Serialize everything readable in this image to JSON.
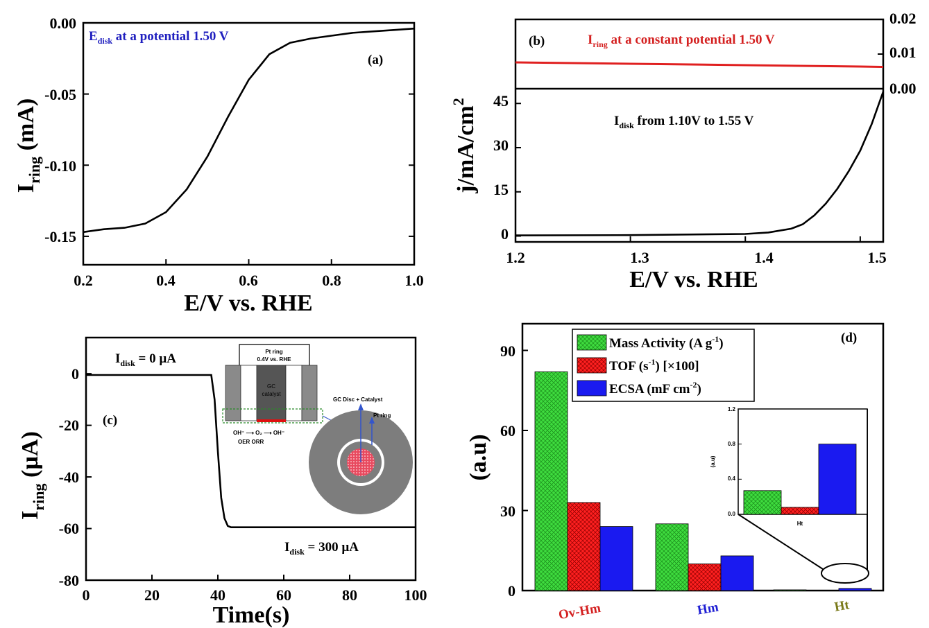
{
  "chart_data": [
    {
      "type": "line",
      "panel_label": "(a)",
      "annotation": {
        "main": "E",
        "sub": "disk",
        "rest": " at a potential 1.50 V",
        "color": "#1f1fbf"
      },
      "xlabel": "E/V vs. RHE",
      "ylabel": {
        "main": "I",
        "sub": "ring",
        "rest": " (mA)"
      },
      "xlim": [
        0.2,
        1.0
      ],
      "ylim": [
        -0.17,
        0.0
      ],
      "xticks": [
        "0.2",
        "0.4",
        "0.6",
        "0.8",
        "1.0"
      ],
      "yticks": [
        "-0.15",
        "-0.10",
        "-0.05",
        "0.00"
      ],
      "series": [
        {
          "color": "#000000",
          "x": [
            0.2,
            0.25,
            0.3,
            0.35,
            0.4,
            0.45,
            0.5,
            0.55,
            0.6,
            0.65,
            0.7,
            0.75,
            0.8,
            0.85,
            0.9,
            0.95,
            1.0
          ],
          "y": [
            -0.147,
            -0.145,
            -0.144,
            -0.141,
            -0.133,
            -0.117,
            -0.094,
            -0.066,
            -0.04,
            -0.022,
            -0.014,
            -0.011,
            -0.009,
            -0.007,
            -0.006,
            -0.005,
            -0.004
          ]
        }
      ]
    },
    {
      "type": "line",
      "panel_label": "(b)",
      "annotation_ring": {
        "main": "I",
        "sub": "ring",
        "rest": " at a constant potential 1.50 V",
        "color": "#d42020"
      },
      "annotation_disk": {
        "main": "I",
        "sub": "disk",
        "rest": " from 1.10V to 1.55 V",
        "color": "#000000"
      },
      "xlabel": "E/V vs. RHE",
      "ylabel": {
        "main": "j/mA/cm",
        "sup": "2"
      },
      "xlim": [
        1.2,
        1.52
      ],
      "ylim_disk": [
        -2,
        50
      ],
      "ylim_ring": [
        0.0,
        0.02
      ],
      "xticks": [
        "1.2",
        "1.3",
        "1.4",
        "1.5"
      ],
      "yticks_disk": [
        "0",
        "15",
        "30",
        "45"
      ],
      "yticks_ring": [
        "0.00",
        "0.01",
        "0.02"
      ],
      "ring_series": {
        "color": "#e02020",
        "x": [
          1.2,
          1.3,
          1.4,
          1.5,
          1.52
        ],
        "y": [
          0.0076,
          0.0072,
          0.0068,
          0.0064,
          0.0063
        ]
      },
      "disk_series": {
        "color": "#000000",
        "x": [
          1.2,
          1.3,
          1.4,
          1.42,
          1.44,
          1.45,
          1.46,
          1.47,
          1.48,
          1.49,
          1.5,
          1.51,
          1.52
        ],
        "y": [
          0.2,
          0.3,
          0.7,
          1.2,
          2.5,
          4.0,
          7.0,
          11.0,
          16.0,
          22.0,
          29.0,
          38.0,
          49.0
        ]
      }
    },
    {
      "type": "line",
      "panel_label": "(c)",
      "xlabel": "Time(s)",
      "ylabel": {
        "main": "I",
        "sub": "ring",
        "rest": " (µA)"
      },
      "xlim": [
        0,
        100
      ],
      "ylim": [
        -80,
        14
      ],
      "xticks": [
        "0",
        "20",
        "40",
        "60",
        "80",
        "100"
      ],
      "yticks": [
        "-80",
        "-60",
        "-40",
        "-20",
        "0"
      ],
      "label_top": {
        "main": "I",
        "sub": "disk",
        "rest": " = 0 µA"
      },
      "label_bottom": {
        "main": "I",
        "sub": "disk",
        "rest": " = 300 µA"
      },
      "inset": {
        "ring_label_1": "Pt ring",
        "ring_label_2": "0.4V vs. RHE",
        "gc_label_1": "GC",
        "gc_label_2": "catalyst",
        "reaction_1": "OH⁻ ⟶ O₂ ⟶ OH⁻",
        "reaction_2": "OER      ORR",
        "disc_label": "GC Disc + Catalyst",
        "pt_ring_label": "Pt ring"
      },
      "series": [
        {
          "color": "#000000",
          "x": [
            0,
            10,
            20,
            30,
            38,
            39,
            40,
            41,
            42,
            43,
            44,
            50,
            60,
            70,
            80,
            90,
            100
          ],
          "y": [
            -0.5,
            -0.5,
            -0.5,
            -0.5,
            -0.5,
            -10,
            -30,
            -48,
            -56,
            -59,
            -59.5,
            -59.5,
            -59.5,
            -59.5,
            -59.5,
            -59.5,
            -59.5
          ]
        }
      ]
    },
    {
      "type": "bar",
      "panel_label": "(d)",
      "ylabel": "(a.u)",
      "ylim": [
        0,
        100
      ],
      "yticks": [
        "0",
        "30",
        "60",
        "90"
      ],
      "categories": [
        "Ov-Hm",
        "Hm",
        "Ht"
      ],
      "category_colors": [
        "#d42020",
        "#1f1fd4",
        "#7a7a1a"
      ],
      "series": [
        {
          "name_main": "Mass Activity (A g",
          "name_sup": "-1",
          "name_tail": ")",
          "color": "#22cc22",
          "values": [
            82,
            25,
            0.27
          ]
        },
        {
          "name_main": "TOF (s",
          "name_sup": "-1",
          "name_tail": ") [×100]",
          "color": "#e41a1a",
          "values": [
            33,
            10,
            0.08
          ]
        },
        {
          "name_main": "ECSA (mF cm",
          "name_sup": "-2",
          "name_tail": ")",
          "color": "#1a1ae4",
          "values": [
            24,
            13,
            0.8
          ]
        }
      ],
      "inset": {
        "ylabel": "(a.u)",
        "ylim": [
          0,
          1.2
        ],
        "yticks": [
          "0.0",
          "0.4",
          "0.8",
          "1.2"
        ],
        "category": "Ht"
      }
    }
  ]
}
